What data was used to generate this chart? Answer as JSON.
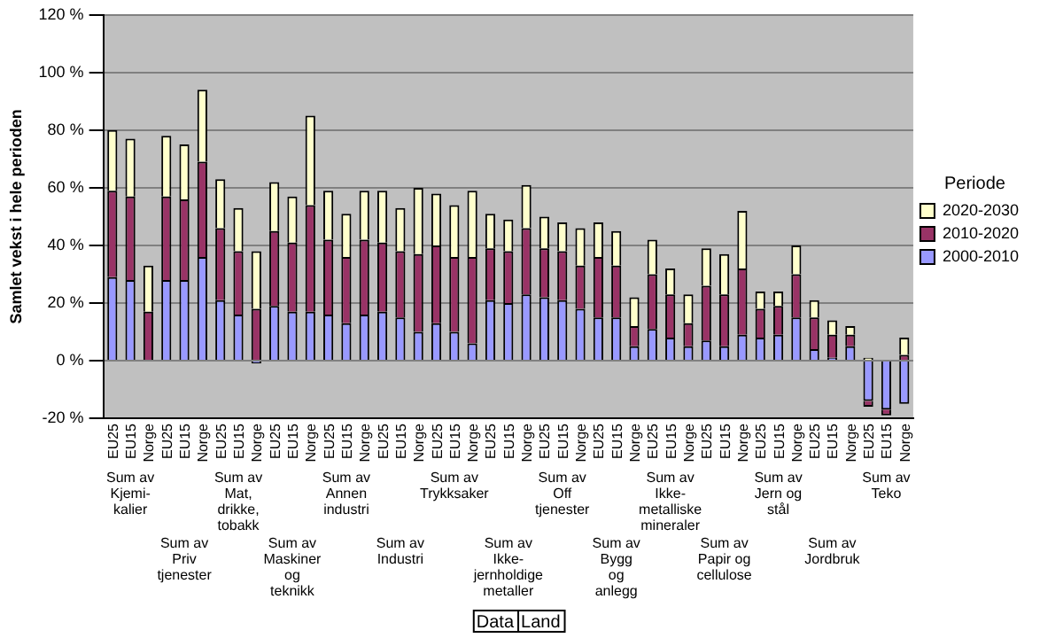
{
  "chart_data": {
    "type": "bar",
    "stacked": true,
    "ylabel": "Samlet vekst i hele perioden",
    "legend_title": "Periode",
    "legend": "right",
    "grid": "y",
    "categories": [
      "EU25",
      "EU15",
      "Norge",
      "EU25",
      "EU15",
      "Norge",
      "EU25",
      "EU15",
      "Norge",
      "EU25",
      "EU15",
      "Norge",
      "EU25",
      "EU15",
      "Norge",
      "EU25",
      "EU15",
      "Norge",
      "EU25",
      "EU15",
      "Norge",
      "EU25",
      "EU15",
      "Norge",
      "EU25",
      "EU15",
      "Norge",
      "EU25",
      "EU15",
      "Norge",
      "EU25",
      "EU15",
      "Norge",
      "EU25",
      "EU15",
      "Norge",
      "EU25",
      "EU15",
      "Norge",
      "EU25",
      "EU15",
      "Norge",
      "EU25",
      "EU15",
      "Norge"
    ],
    "ylim": [
      -20,
      120
    ],
    "yticks": [
      {
        "value": -20,
        "label": "-20 %"
      },
      {
        "value": 0,
        "label": "0 %"
      },
      {
        "value": 20,
        "label": "20 %"
      },
      {
        "value": 40,
        "label": "40 %"
      },
      {
        "value": 60,
        "label": "60 %"
      },
      {
        "value": 80,
        "label": "80 %"
      },
      {
        "value": 100,
        "label": "100 %"
      },
      {
        "value": 120,
        "label": "120 %"
      }
    ],
    "series": [
      {
        "name": "2000-2010",
        "color": "#9999ff",
        "values": [
          29,
          28,
          0,
          28,
          28,
          36,
          21,
          16,
          -1,
          19,
          17,
          17,
          16,
          13,
          16,
          17,
          15,
          10,
          13,
          10,
          6,
          21,
          20,
          23,
          22,
          21,
          18,
          15,
          15,
          5,
          11,
          8,
          5,
          7,
          5,
          9,
          8,
          9,
          15,
          4,
          1,
          5,
          -14,
          -17,
          -15
        ]
      },
      {
        "name": "2010-2020",
        "color": "#993366",
        "values": [
          30,
          29,
          17,
          29,
          28,
          33,
          25,
          22,
          18,
          26,
          24,
          37,
          26,
          23,
          26,
          24,
          23,
          27,
          27,
          26,
          30,
          18,
          18,
          23,
          17,
          17,
          15,
          21,
          18,
          7,
          19,
          15,
          8,
          19,
          18,
          23,
          10,
          10,
          15,
          11,
          8,
          4,
          -2,
          -2,
          2
        ]
      },
      {
        "name": "2020-2030",
        "color": "#ffffcc",
        "values": [
          21,
          20,
          16,
          21,
          19,
          25,
          17,
          15,
          20,
          17,
          16,
          31,
          17,
          15,
          17,
          18,
          15,
          23,
          18,
          18,
          23,
          12,
          11,
          15,
          11,
          10,
          13,
          12,
          12,
          10,
          12,
          9,
          10,
          13,
          14,
          20,
          6,
          5,
          10,
          6,
          5,
          3,
          1,
          0,
          6
        ]
      }
    ],
    "annotations": [
      "Sum av\nKjemi-\nkalier",
      "Sum av\nPriv\ntjenester",
      "Sum av\nMat,\ndrikke,\ntobakk",
      "Sum av\nMaskiner\nog\nteknikk",
      "Sum av\nAnnen\nindustri",
      "Sum av\nIndustri",
      "Sum av\nTrykksaker",
      "Sum av\nIkke-\njernholdige\nmetaller",
      "Sum av\nOff\ntjenester",
      "Sum av\nBygg\nog\nanlegg",
      "Sum av\nIkke-\nmetalliske\nmineraler",
      "Sum av\nPapir og\ncellulose",
      "Sum av\nJern og\nstål",
      "Sum av\nJordbruk",
      "Sum av\nTeko",
      "Data",
      "Land"
    ]
  }
}
